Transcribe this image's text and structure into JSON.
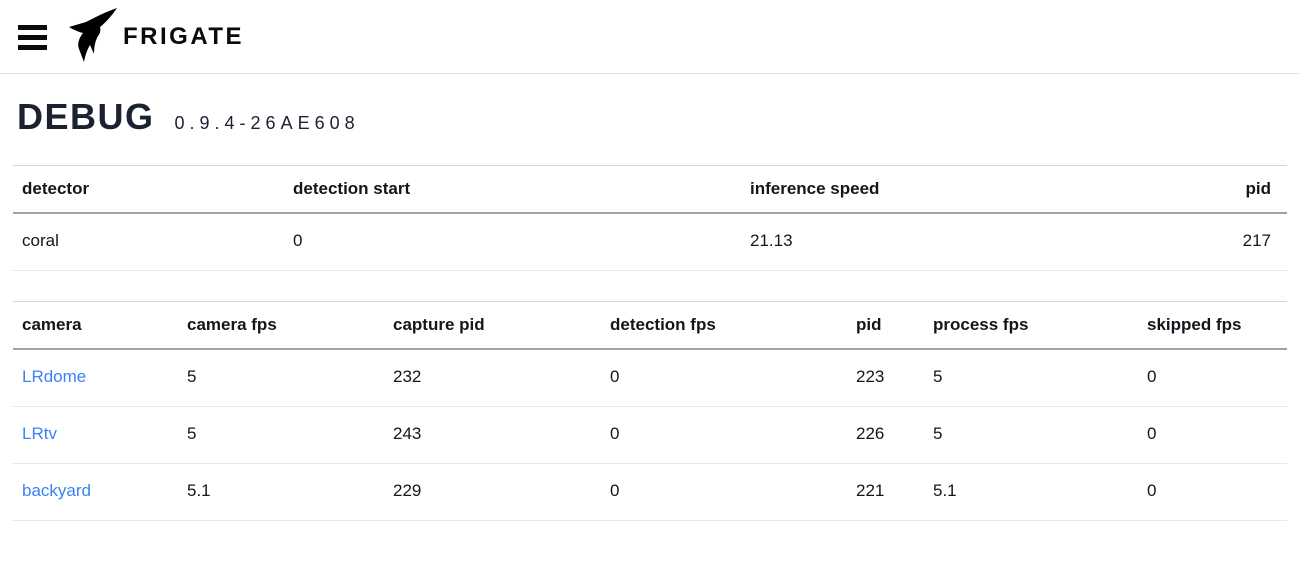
{
  "header": {
    "brand": "FRIGATE",
    "icons": {
      "menu": "hamburger-menu-icon",
      "logo": "frigate-bird-logo"
    }
  },
  "page": {
    "title": "DEBUG",
    "version": "0.9.4-26AE608"
  },
  "colors": {
    "link_blue": "#3b82f6",
    "thead_underline": "#9ca3af",
    "row_divider": "#e5e7eb"
  },
  "detector_table": {
    "columns": [
      "detector",
      "detection start",
      "inference speed",
      "pid"
    ],
    "rows": [
      [
        "coral",
        "0",
        "21.13",
        "217"
      ]
    ]
  },
  "cameras_table": {
    "columns": [
      "camera",
      "camera fps",
      "capture pid",
      "detection fps",
      "pid",
      "process fps",
      "skipped fps"
    ],
    "rows": [
      [
        "LRdome",
        "5",
        "232",
        "0",
        "223",
        "5",
        "0"
      ],
      [
        "LRtv",
        "5",
        "243",
        "0",
        "226",
        "5",
        "0"
      ],
      [
        "backyard",
        "5.1",
        "229",
        "0",
        "221",
        "5.1",
        "0"
      ]
    ]
  }
}
